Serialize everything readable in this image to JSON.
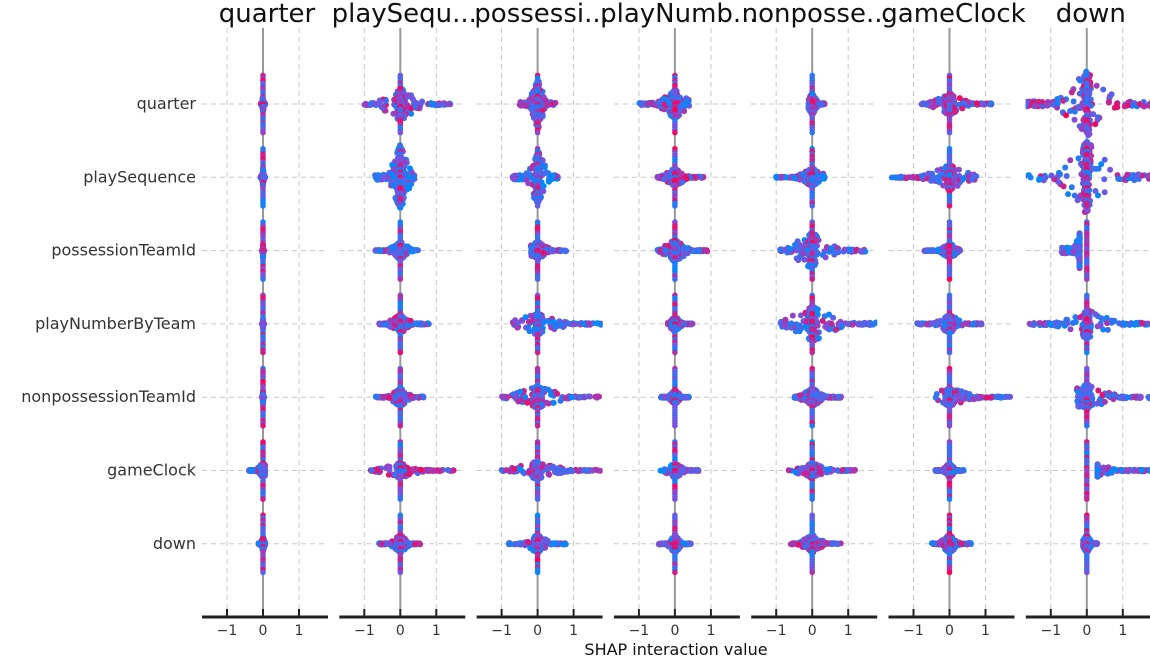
{
  "chart_data": {
    "type": "scatter",
    "subtype": "shap-interaction-beeswarm-matrix",
    "xlabel": "SHAP interaction value",
    "features": [
      "quarter",
      "playSequence",
      "possessionTeamId",
      "playNumberByTeam",
      "nonpossessionTeamId",
      "gameClock",
      "down"
    ],
    "panel_titles": [
      "quarter",
      "playSequ...",
      "possessi...",
      "playNumb...",
      "nonposse...",
      "gameClock",
      "down"
    ],
    "xlim": [
      -1.6,
      1.75
    ],
    "xticks": [
      -1,
      0,
      1
    ],
    "xtick_labels": [
      "−1",
      "0",
      "1"
    ],
    "grid": true,
    "color_scale": {
      "low": "#008afb",
      "mid": "#7a52e0",
      "high": "#ff0052"
    },
    "cells": [
      [
        [
          -0.05,
          0.05,
          0.25,
          0.6
        ],
        [
          -0.06,
          0.05,
          0.25,
          0.35
        ],
        [
          -0.02,
          0.02,
          0.2,
          0.4
        ],
        [
          -0.02,
          0.02,
          0.15,
          0.45
        ],
        [
          -0.02,
          0.02,
          0.2,
          0.45
        ],
        [
          -0.4,
          0.05,
          0.2,
          0.35
        ],
        [
          -0.12,
          0.05,
          0.2,
          0.4
        ]
      ],
      [
        [
          -1.0,
          1.4,
          0.45,
          0.5
        ],
        [
          -0.7,
          0.4,
          0.9,
          0.25
        ],
        [
          -0.7,
          0.5,
          0.25,
          0.35
        ],
        [
          -0.6,
          0.8,
          0.25,
          0.5
        ],
        [
          -0.7,
          0.65,
          0.25,
          0.5
        ],
        [
          -0.85,
          1.5,
          0.2,
          0.6
        ],
        [
          -0.6,
          0.55,
          0.25,
          0.45
        ]
      ],
      [
        [
          -0.5,
          0.5,
          0.7,
          0.45
        ],
        [
          -0.7,
          0.6,
          0.75,
          0.35
        ],
        [
          -0.2,
          0.8,
          0.25,
          0.5
        ],
        [
          -0.7,
          1.8,
          0.3,
          0.35
        ],
        [
          -1.0,
          1.8,
          0.3,
          0.45
        ],
        [
          -1.0,
          1.8,
          0.25,
          0.45
        ],
        [
          -0.8,
          0.8,
          0.25,
          0.4
        ]
      ],
      [
        [
          -1.0,
          0.4,
          0.4,
          0.45
        ],
        [
          -0.5,
          0.8,
          0.25,
          0.55
        ],
        [
          -0.5,
          0.9,
          0.3,
          0.45
        ],
        [
          -0.2,
          0.5,
          0.2,
          0.35
        ],
        [
          -0.4,
          0.4,
          0.2,
          0.5
        ],
        [
          -0.4,
          0.7,
          0.2,
          0.35
        ],
        [
          -0.45,
          0.45,
          0.25,
          0.4
        ]
      ],
      [
        [
          -0.1,
          0.35,
          0.3,
          0.4
        ],
        [
          -1.0,
          0.4,
          0.25,
          0.35
        ],
        [
          -0.9,
          1.5,
          0.5,
          0.45
        ],
        [
          -0.9,
          1.8,
          0.5,
          0.4
        ],
        [
          -0.5,
          0.8,
          0.25,
          0.5
        ],
        [
          -0.7,
          1.2,
          0.2,
          0.45
        ],
        [
          -0.6,
          0.8,
          0.25,
          0.45
        ]
      ],
      [
        [
          -0.8,
          1.2,
          0.3,
          0.55
        ],
        [
          -1.6,
          0.8,
          0.35,
          0.45
        ],
        [
          -0.7,
          0.3,
          0.2,
          0.45
        ],
        [
          -0.9,
          0.9,
          0.25,
          0.45
        ],
        [
          -0.4,
          1.7,
          0.25,
          0.5
        ],
        [
          -0.4,
          0.4,
          0.2,
          0.4
        ],
        [
          -0.5,
          0.6,
          0.25,
          0.4
        ]
      ],
      [
        [
          -1.8,
          1.8,
          0.9,
          0.55
        ],
        [
          -1.8,
          1.8,
          1.0,
          0.4
        ],
        [
          -0.7,
          -0.2,
          1.0,
          0.2
        ],
        [
          -1.6,
          1.8,
          0.4,
          0.4
        ],
        [
          -0.3,
          1.8,
          0.35,
          0.45
        ],
        [
          0.3,
          1.8,
          0.25,
          0.35
        ],
        [
          -0.1,
          0.3,
          0.25,
          0.35
        ]
      ]
    ]
  }
}
